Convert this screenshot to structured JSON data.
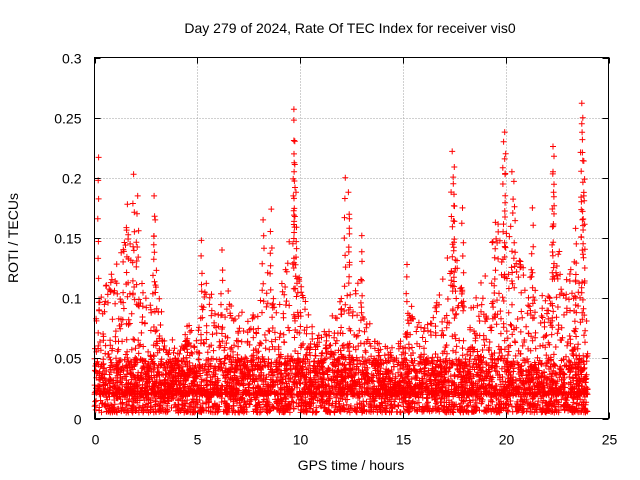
{
  "chart_data": {
    "type": "scatter",
    "title": "Day 279 of 2024, Rate Of TEC Index for receiver vis0",
    "xlabel": "GPS time / hours",
    "ylabel": "ROTI / TECUs",
    "xlim": [
      0,
      25
    ],
    "ylim": [
      0,
      0.3
    ],
    "x_ticks": [
      0,
      5,
      10,
      15,
      20,
      25
    ],
    "x_tick_labels": [
      "0",
      "5",
      "10",
      "15",
      "20",
      "25"
    ],
    "y_ticks": [
      0,
      0.05,
      0.1,
      0.15,
      0.2,
      0.25,
      0.3
    ],
    "y_tick_labels": [
      "0",
      "0.05",
      "0.1",
      "0.15",
      "0.2",
      "0.25",
      "0.3"
    ],
    "grid": true,
    "marker": "+",
    "color": "#ff0000",
    "data_range_hours": [
      0,
      24
    ],
    "baseline_band": [
      0.005,
      0.05
    ],
    "activity_profile": [
      {
        "t": 0.0,
        "env": 0.09
      },
      {
        "t": 0.5,
        "env": 0.12
      },
      {
        "t": 1.0,
        "env": 0.14
      },
      {
        "t": 1.5,
        "env": 0.16
      },
      {
        "t": 2.0,
        "env": 0.15
      },
      {
        "t": 2.5,
        "env": 0.1
      },
      {
        "t": 3.0,
        "env": 0.13
      },
      {
        "t": 3.5,
        "env": 0.06
      },
      {
        "t": 4.0,
        "env": 0.07
      },
      {
        "t": 4.5,
        "env": 0.08
      },
      {
        "t": 5.0,
        "env": 0.07
      },
      {
        "t": 5.5,
        "env": 0.12
      },
      {
        "t": 6.0,
        "env": 0.09
      },
      {
        "t": 6.5,
        "env": 0.11
      },
      {
        "t": 7.0,
        "env": 0.1
      },
      {
        "t": 7.5,
        "env": 0.08
      },
      {
        "t": 8.0,
        "env": 0.1
      },
      {
        "t": 8.5,
        "env": 0.13
      },
      {
        "t": 9.0,
        "env": 0.11
      },
      {
        "t": 9.5,
        "env": 0.16
      },
      {
        "t": 10.0,
        "env": 0.12
      },
      {
        "t": 10.5,
        "env": 0.08
      },
      {
        "t": 11.0,
        "env": 0.07
      },
      {
        "t": 11.5,
        "env": 0.08
      },
      {
        "t": 12.0,
        "env": 0.12
      },
      {
        "t": 12.5,
        "env": 0.1
      },
      {
        "t": 13.0,
        "env": 0.12
      },
      {
        "t": 13.5,
        "env": 0.07
      },
      {
        "t": 14.0,
        "env": 0.06
      },
      {
        "t": 14.5,
        "env": 0.06
      },
      {
        "t": 15.0,
        "env": 0.07
      },
      {
        "t": 15.5,
        "env": 0.1
      },
      {
        "t": 16.0,
        "env": 0.08
      },
      {
        "t": 16.5,
        "env": 0.09
      },
      {
        "t": 17.0,
        "env": 0.12
      },
      {
        "t": 17.5,
        "env": 0.17
      },
      {
        "t": 18.0,
        "env": 0.09
      },
      {
        "t": 18.5,
        "env": 0.1
      },
      {
        "t": 19.0,
        "env": 0.13
      },
      {
        "t": 19.5,
        "env": 0.16
      },
      {
        "t": 20.0,
        "env": 0.17
      },
      {
        "t": 20.5,
        "env": 0.14
      },
      {
        "t": 21.0,
        "env": 0.13
      },
      {
        "t": 21.5,
        "env": 0.12
      },
      {
        "t": 22.0,
        "env": 0.1
      },
      {
        "t": 22.5,
        "env": 0.15
      },
      {
        "t": 23.0,
        "env": 0.12
      },
      {
        "t": 23.5,
        "env": 0.14
      },
      {
        "t": 24.0,
        "env": 0.08
      }
    ],
    "peaks": [
      {
        "x": 0.2,
        "y": 0.217
      },
      {
        "x": 1.6,
        "y": 0.178
      },
      {
        "x": 1.9,
        "y": 0.203
      },
      {
        "x": 2.1,
        "y": 0.185
      },
      {
        "x": 2.9,
        "y": 0.185
      },
      {
        "x": 2.95,
        "y": 0.165
      },
      {
        "x": 5.2,
        "y": 0.148
      },
      {
        "x": 6.2,
        "y": 0.14
      },
      {
        "x": 8.2,
        "y": 0.165
      },
      {
        "x": 8.6,
        "y": 0.174
      },
      {
        "x": 9.7,
        "y": 0.257
      },
      {
        "x": 9.7,
        "y": 0.248
      },
      {
        "x": 9.7,
        "y": 0.231
      },
      {
        "x": 9.75,
        "y": 0.192
      },
      {
        "x": 9.8,
        "y": 0.188
      },
      {
        "x": 12.2,
        "y": 0.2
      },
      {
        "x": 12.35,
        "y": 0.188
      },
      {
        "x": 12.4,
        "y": 0.166
      },
      {
        "x": 13.0,
        "y": 0.152
      },
      {
        "x": 15.2,
        "y": 0.128
      },
      {
        "x": 17.4,
        "y": 0.222
      },
      {
        "x": 17.5,
        "y": 0.209
      },
      {
        "x": 17.45,
        "y": 0.195
      },
      {
        "x": 17.9,
        "y": 0.175
      },
      {
        "x": 19.5,
        "y": 0.163
      },
      {
        "x": 19.95,
        "y": 0.238
      },
      {
        "x": 19.9,
        "y": 0.23
      },
      {
        "x": 20.0,
        "y": 0.22
      },
      {
        "x": 20.3,
        "y": 0.205
      },
      {
        "x": 20.4,
        "y": 0.197
      },
      {
        "x": 21.3,
        "y": 0.175
      },
      {
        "x": 22.3,
        "y": 0.226
      },
      {
        "x": 22.35,
        "y": 0.218
      },
      {
        "x": 22.3,
        "y": 0.205
      },
      {
        "x": 23.7,
        "y": 0.262
      },
      {
        "x": 23.75,
        "y": 0.25
      },
      {
        "x": 23.7,
        "y": 0.245
      },
      {
        "x": 23.8,
        "y": 0.214
      },
      {
        "x": 23.8,
        "y": 0.185
      },
      {
        "x": 23.4,
        "y": 0.158
      }
    ]
  }
}
